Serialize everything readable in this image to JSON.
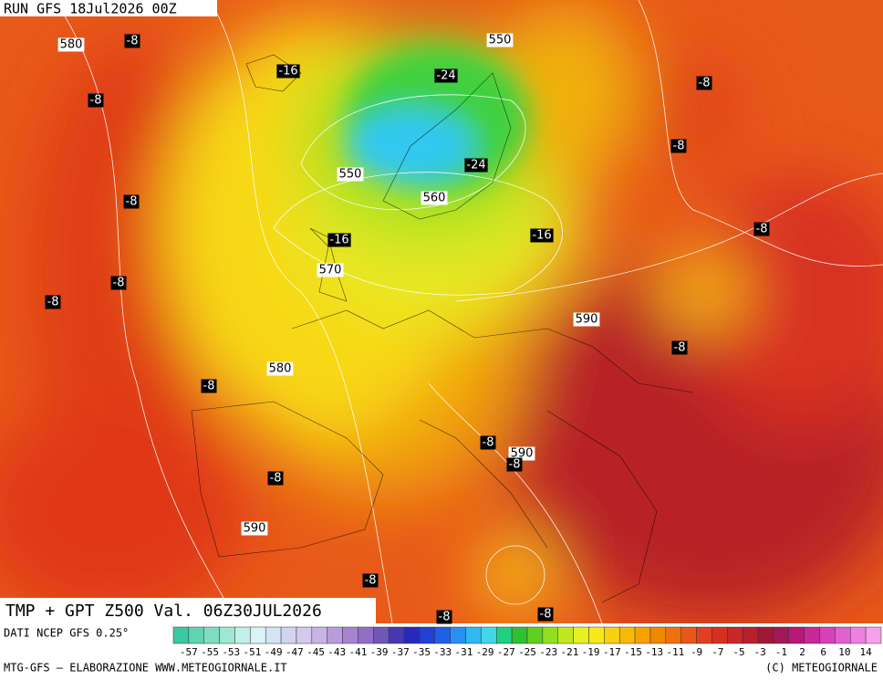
{
  "header": {
    "run": "RUN GFS 18Jul2026 00Z",
    "title": "TMP + GPT Z500 Val. 06Z30JUL2026"
  },
  "map": {
    "contour_labels": [
      "580",
      "550",
      "550",
      "560",
      "570",
      "590",
      "580",
      "590",
      "590"
    ],
    "temperature_labels": [
      "-8",
      "-16",
      "-24",
      "-8",
      "-8",
      "-8",
      "-24",
      "-8",
      "-8",
      "-16",
      "-16",
      "-8",
      "-8",
      "-8",
      "-8",
      "-8",
      "-8",
      "-8",
      "-8",
      "-8",
      "-8"
    ]
  },
  "legend": {
    "source": "DATI NCEP GFS 0.25°",
    "colors": [
      "#3cc8a0",
      "#5fd4b0",
      "#80dcc0",
      "#a0e6d4",
      "#c0f0e8",
      "#d8f4f4",
      "#d4e4f0",
      "#d0d4ee",
      "#d4c8ec",
      "#c8b4e4",
      "#b89cdc",
      "#a884d0",
      "#9070c4",
      "#7058b8",
      "#4838b0",
      "#2828c0",
      "#2040d8",
      "#2060e8",
      "#2890f0",
      "#30b8f0",
      "#40d8e8",
      "#20d080",
      "#30c030",
      "#60d020",
      "#90e020",
      "#c0e820",
      "#e8f020",
      "#f8e818",
      "#f8d010",
      "#f8b808",
      "#f8a000",
      "#f08800",
      "#f07010",
      "#e85818",
      "#e04020",
      "#d83020",
      "#c82828",
      "#b82030",
      "#a01838",
      "#a01858",
      "#b81878",
      "#c82898",
      "#d840b8",
      "#e060d0",
      "#f080e0",
      "#f8a0ec"
    ],
    "ticks": [
      -57,
      -55,
      -53,
      -51,
      -49,
      -47,
      -45,
      -43,
      -41,
      -39,
      -37,
      -35,
      -33,
      -31,
      -29,
      -27,
      -25,
      -23,
      -21,
      -19,
      -17,
      -15,
      -13,
      -11,
      -9,
      -7,
      -5,
      -3,
      -1,
      2,
      6,
      10,
      14
    ]
  },
  "footer": {
    "credit": "MTG-GFS — ELABORAZIONE WWW.METEOGIORNALE.IT",
    "copyright": "(C) METEOGIORNALE"
  }
}
